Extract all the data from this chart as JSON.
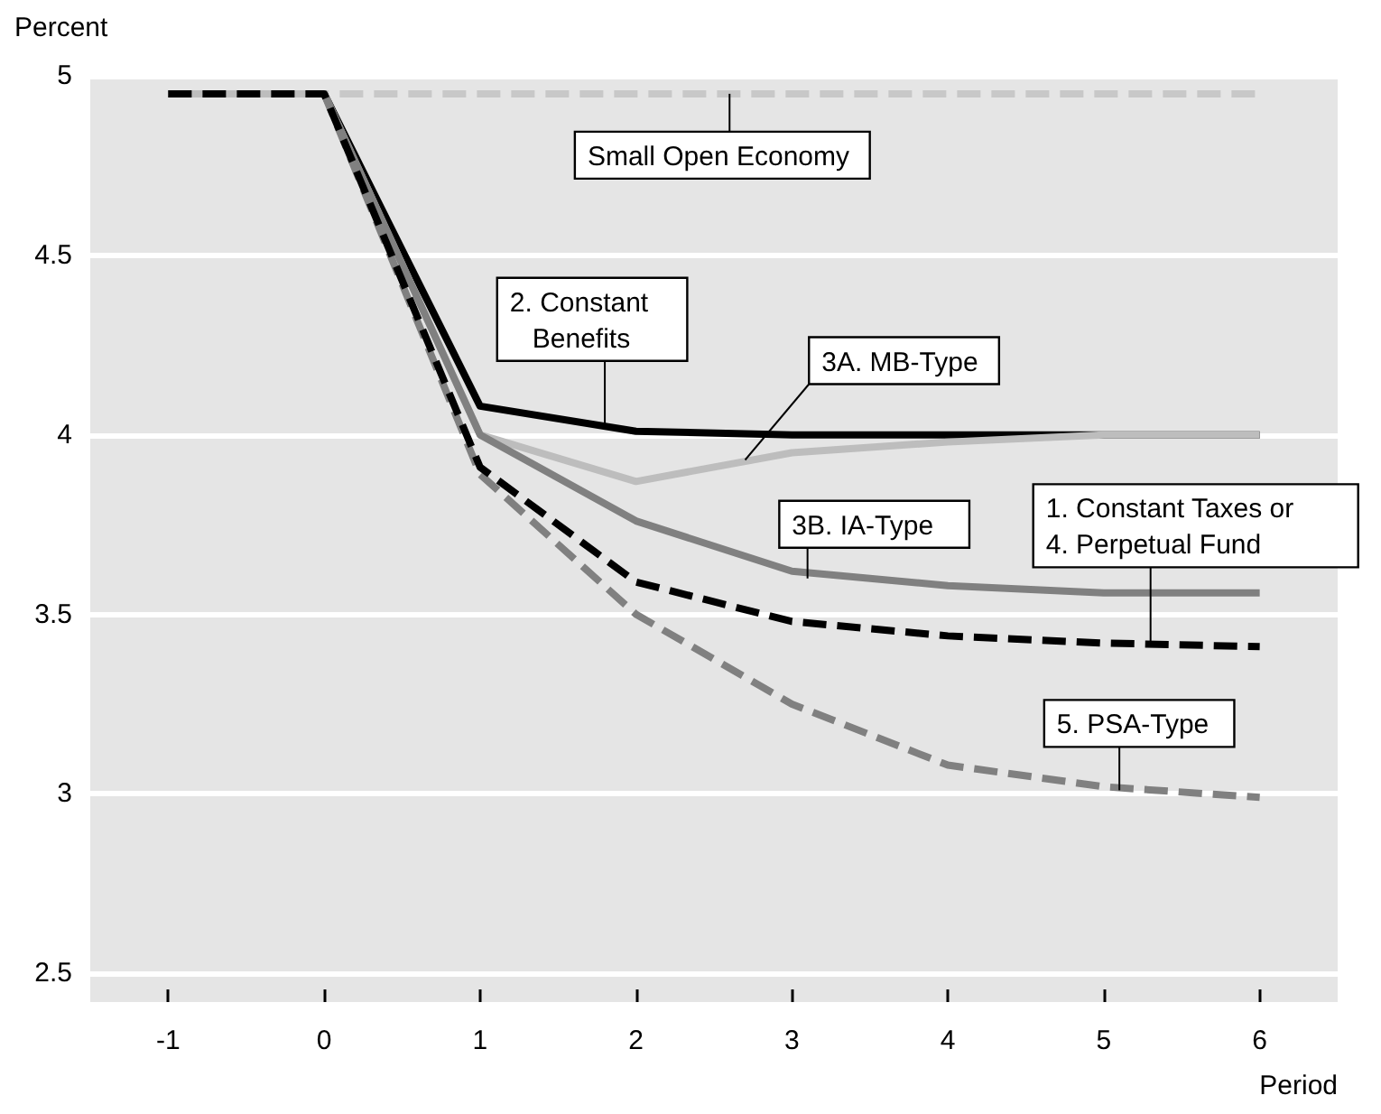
{
  "chart_data": {
    "type": "line",
    "ylabel": "Percent",
    "xlabel": "Period",
    "x": [
      -1,
      0,
      1,
      2,
      3,
      4,
      5,
      6
    ],
    "series": [
      {
        "color": "#c8c8c8",
        "line_style": "dashed",
        "values": [
          4.95,
          4.95,
          4.95,
          4.95,
          4.95,
          4.95,
          4.95,
          4.95
        ]
      },
      {
        "color": "#000000",
        "line_style": "solid",
        "values": [
          4.95,
          4.95,
          4.08,
          4.01,
          4.0,
          4.0,
          4.0,
          4.0
        ]
      },
      {
        "color": "#bdbdbd",
        "line_style": "solid",
        "values": [
          4.95,
          4.95,
          4.0,
          3.87,
          3.95,
          3.98,
          4.0,
          4.0
        ]
      },
      {
        "color": "#808080",
        "line_style": "solid",
        "values": [
          null,
          4.95,
          4.0,
          3.76,
          3.62,
          3.58,
          3.56,
          3.56
        ]
      },
      {
        "color": "#808080",
        "line_style": "dashed",
        "values": [
          null,
          4.95,
          3.89,
          3.5,
          3.25,
          3.08,
          3.02,
          2.99
        ]
      },
      {
        "color": "#000000",
        "line_style": "dashed",
        "values": [
          4.95,
          4.95,
          3.91,
          3.59,
          3.48,
          3.44,
          3.42,
          3.41
        ]
      }
    ],
    "xlim": [
      -1.5,
      6.5
    ],
    "ylim": [
      2.42,
      5
    ],
    "xticks": [
      -1,
      0,
      1,
      2,
      3,
      4,
      5,
      6
    ],
    "yticks": [
      2.5,
      3,
      3.5,
      4,
      4.5,
      5
    ],
    "grid": "y",
    "marker": "none",
    "annotations": [
      {
        "text": "Small Open Economy",
        "x": 2.6,
        "y": 4.95
      },
      {
        "text": "2. Constant\n   Benefits",
        "x": 1.8,
        "y": 4.02
      },
      {
        "text": "3A. MB-Type",
        "x": 2.7,
        "y": 3.93
      },
      {
        "text": "3B. IA-Type",
        "x": 3.1,
        "y": 3.6
      },
      {
        "text": "1. Constant Taxes or\n4. Perpetual Fund",
        "x": 5.3,
        "y": 3.42
      },
      {
        "text": "5. PSA-Type",
        "x": 5.1,
        "y": 3.01
      }
    ]
  }
}
